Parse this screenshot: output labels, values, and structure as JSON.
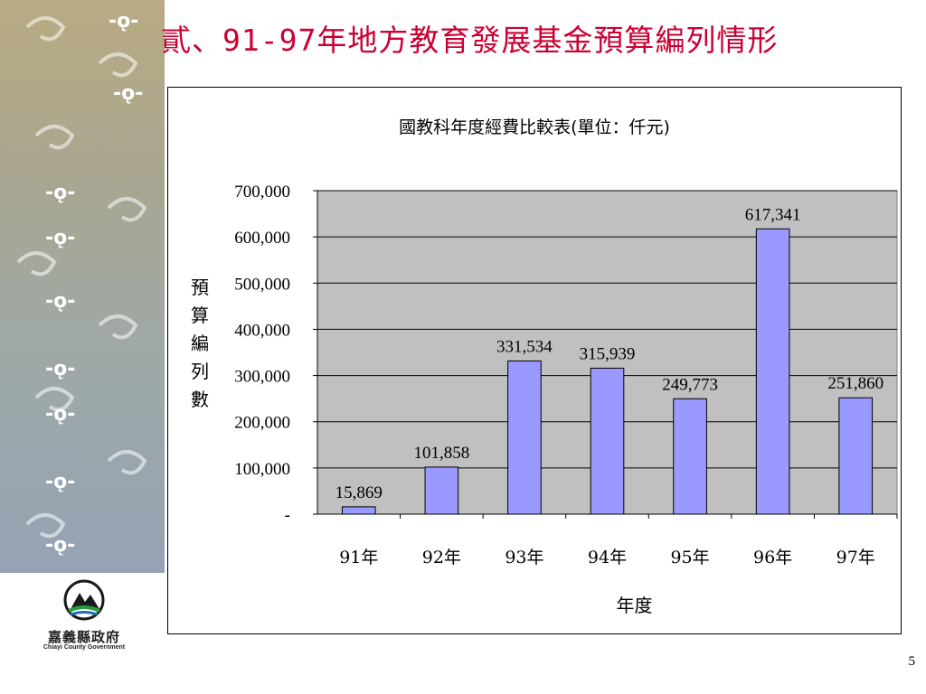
{
  "slide": {
    "title": "貳、91-97年地方教育發展基金預算編列情形",
    "page_number": "5"
  },
  "logo": {
    "name": "嘉義縣政府",
    "subtitle": "Chiayi County Government"
  },
  "chart_data": {
    "type": "bar",
    "title": "國教科年度經費比較表(單位：仟元)",
    "xlabel": "年度",
    "ylabel": "預算編列數",
    "categories": [
      "91年",
      "92年",
      "93年",
      "94年",
      "95年",
      "96年",
      "97年"
    ],
    "values": [
      15869,
      101858,
      331534,
      315939,
      249773,
      617341,
      251860
    ],
    "data_labels": [
      "15,869",
      "101,858",
      "331,534",
      "315,939",
      "249,773",
      "617,341",
      "251,860"
    ],
    "ylim": [
      0,
      700000
    ],
    "yticks": [
      0,
      100000,
      200000,
      300000,
      400000,
      500000,
      600000,
      700000
    ],
    "ytick_labels": [
      "-",
      "100,000",
      "200,000",
      "300,000",
      "400,000",
      "500,000",
      "600,000",
      "700,000"
    ],
    "grid": true,
    "colors": {
      "bar": "#9999ff",
      "plot_background": "#c0c0c0",
      "title": "#cc0033"
    }
  }
}
